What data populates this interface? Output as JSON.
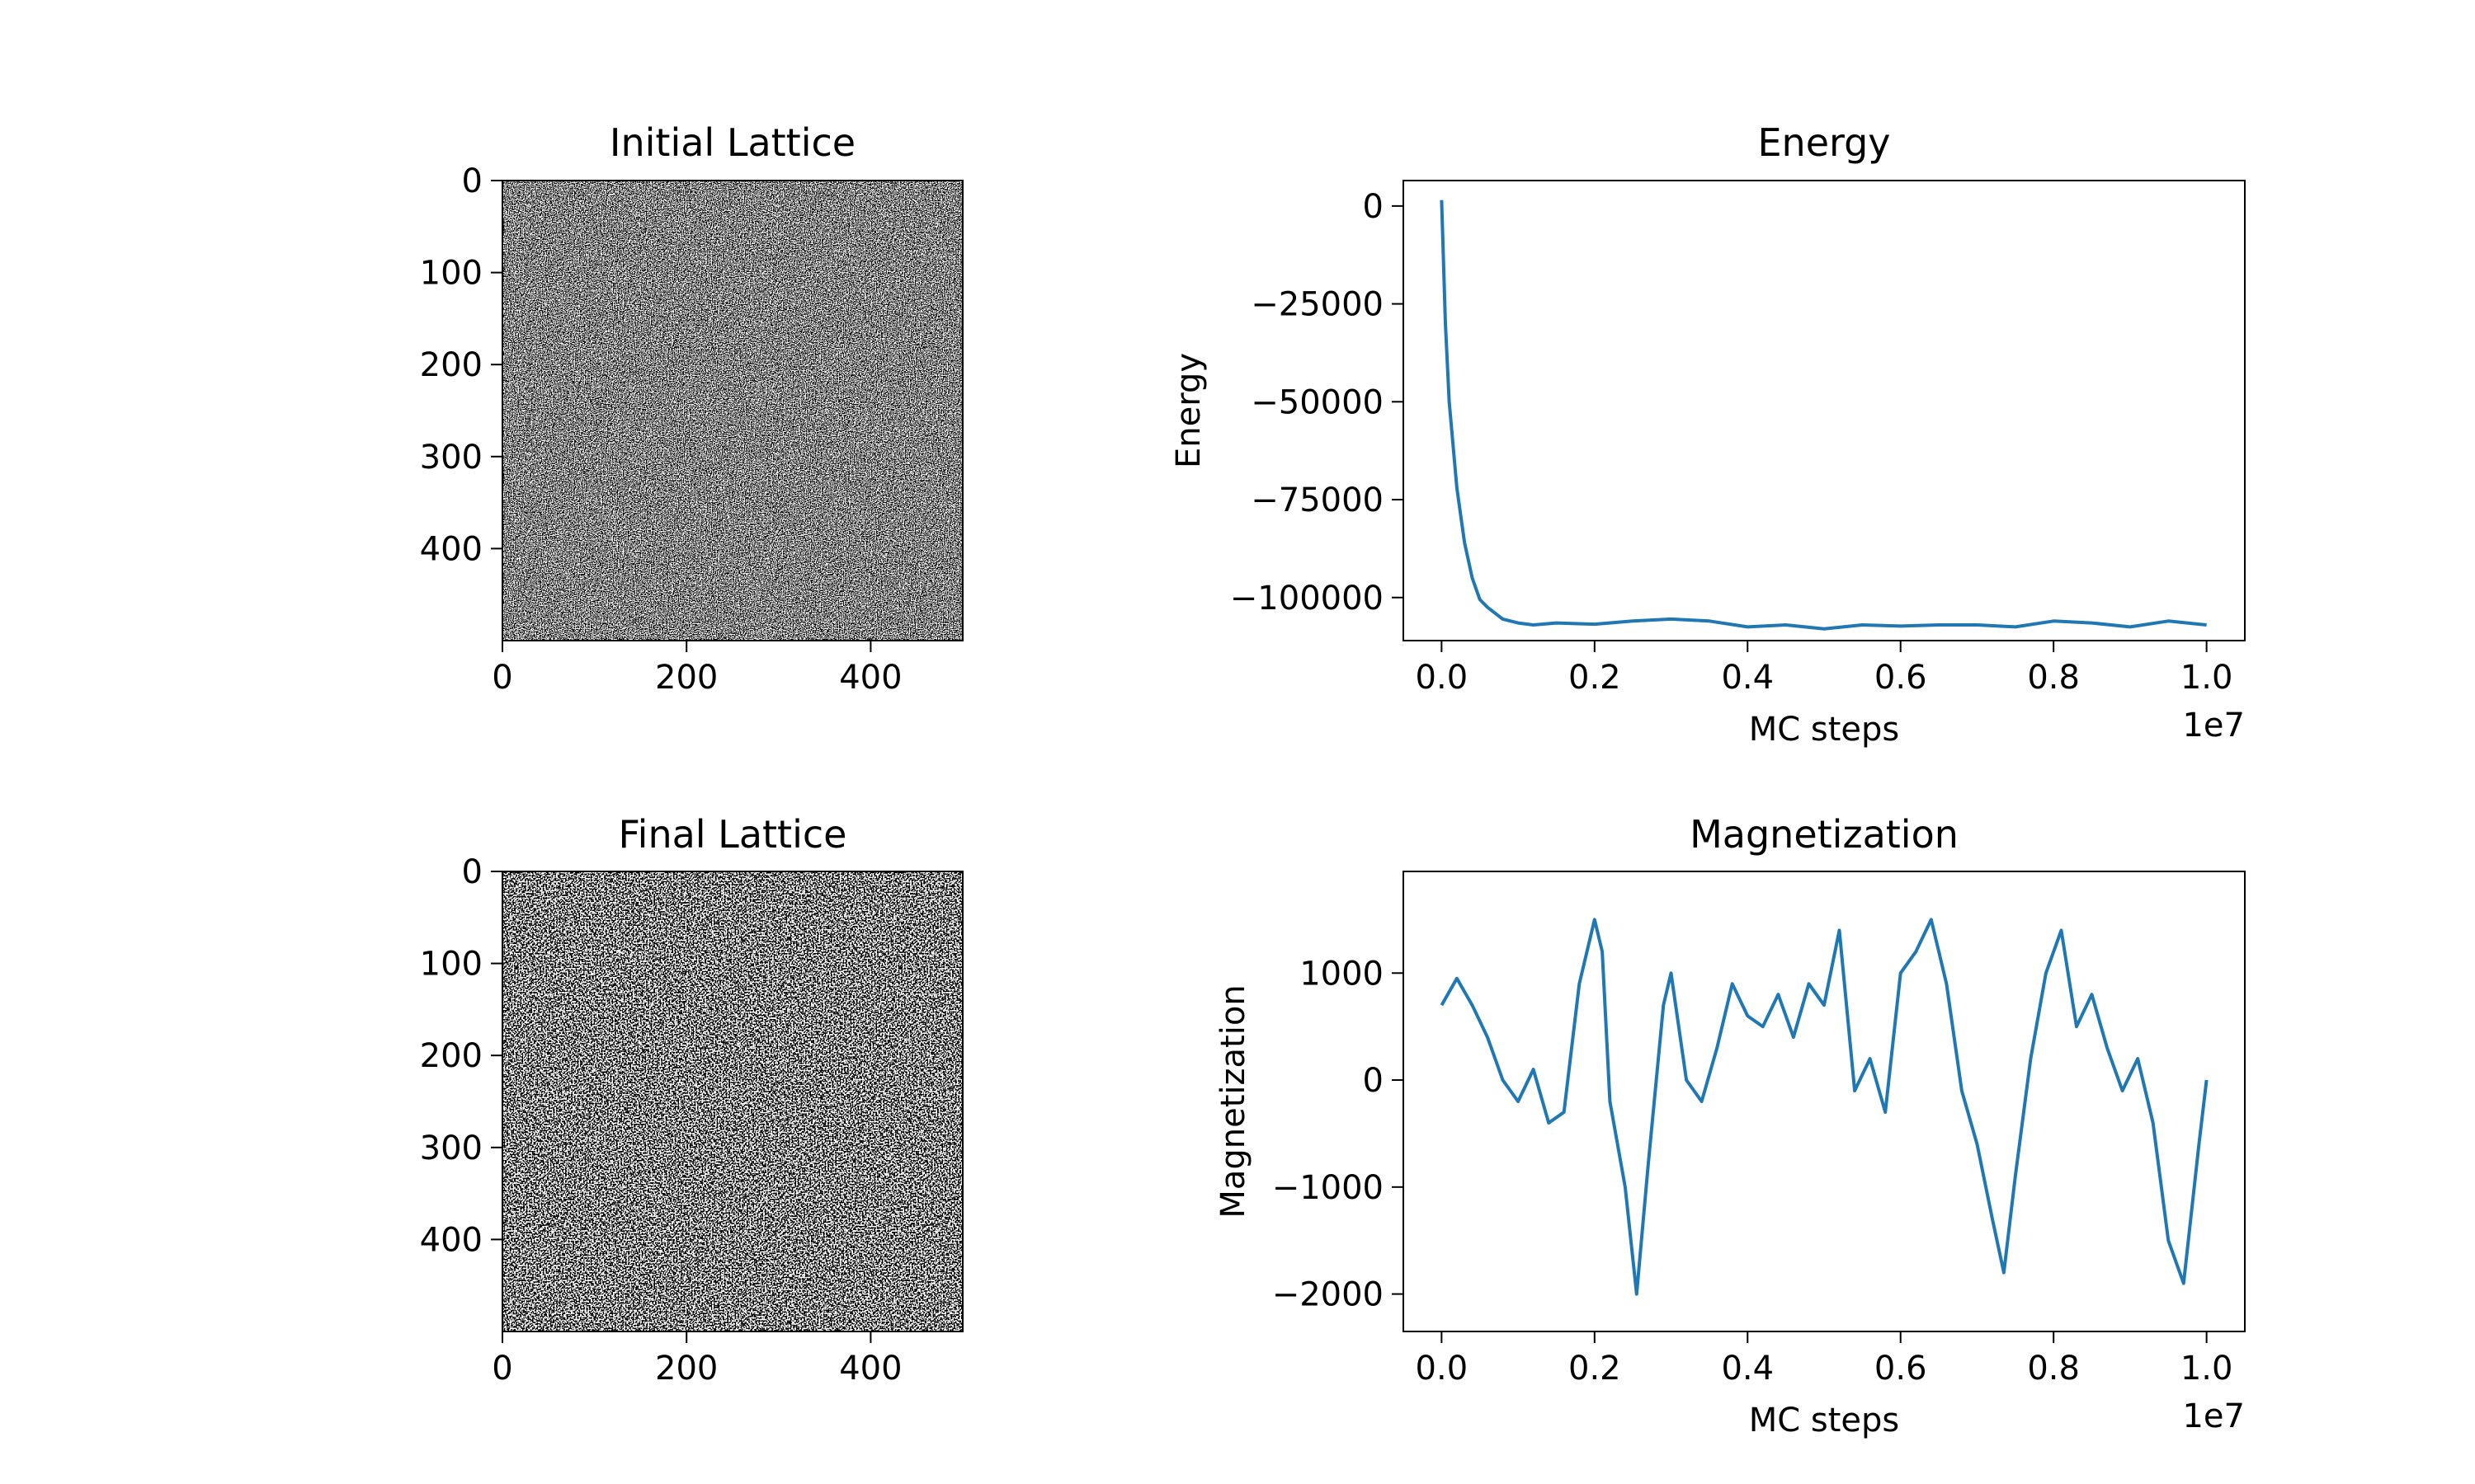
{
  "figure": {
    "background": "#ffffff"
  },
  "chart_data": [
    {
      "type": "heatmap",
      "title": "Initial Lattice",
      "grid_size": 500,
      "colormap": [
        "#000000",
        "#ffffff"
      ],
      "xlim": [
        0,
        500
      ],
      "ylim": [
        500,
        0
      ],
      "xticks": [
        0,
        200,
        400
      ],
      "yticks": [
        0,
        100,
        200,
        300,
        400
      ],
      "description": "Random +1/-1 spin configuration"
    },
    {
      "type": "line",
      "title": "Energy",
      "xlabel": "MC steps",
      "ylabel": "Energy",
      "x_offset_label": "1e7",
      "color": "#1f77b4",
      "xlim": [
        -0.05,
        1.05
      ],
      "ylim": [
        -111000,
        6500
      ],
      "xticks": [
        0.0,
        0.2,
        0.4,
        0.6,
        0.8,
        1.0
      ],
      "xtick_labels": [
        "0.0",
        "0.2",
        "0.4",
        "0.6",
        "0.8",
        "1.0"
      ],
      "yticks": [
        0,
        -25000,
        -50000,
        -75000,
        -100000
      ],
      "ytick_labels": [
        "0",
        "−25000",
        "−50000",
        "−75000",
        "−100000"
      ],
      "series": [
        {
          "x": [
            0.0,
            0.005,
            0.01,
            0.02,
            0.03,
            0.04,
            0.05,
            0.06,
            0.07,
            0.08,
            0.1,
            0.12,
            0.15,
            0.2,
            0.25,
            0.3,
            0.35,
            0.4,
            0.45,
            0.5,
            0.55,
            0.6,
            0.65,
            0.7,
            0.75,
            0.8,
            0.85,
            0.9,
            0.95,
            1.0
          ],
          "y": [
            1500,
            -30000,
            -50000,
            -72000,
            -86000,
            -95000,
            -100500,
            -102500,
            -104000,
            -105500,
            -106500,
            -107000,
            -106500,
            -106800,
            -106000,
            -105500,
            -106000,
            -107500,
            -107000,
            -108000,
            -107000,
            -107300,
            -107000,
            -107000,
            -107500,
            -106000,
            -106500,
            -107500,
            -106000,
            -107000
          ]
        }
      ]
    },
    {
      "type": "heatmap",
      "title": "Final Lattice",
      "grid_size": 500,
      "colormap": [
        "#000000",
        "#ffffff"
      ],
      "xlim": [
        0,
        500
      ],
      "ylim": [
        500,
        0
      ],
      "xticks": [
        0,
        200,
        400
      ],
      "yticks": [
        0,
        100,
        200,
        300,
        400
      ],
      "description": "Spin configuration after MC steps"
    },
    {
      "type": "line",
      "title": "Magnetization",
      "xlabel": "MC steps",
      "ylabel": "Magnetization",
      "x_offset_label": "1e7",
      "color": "#1f77b4",
      "xlim": [
        -0.05,
        1.05
      ],
      "ylim": [
        -2350,
        1950
      ],
      "xticks": [
        0.0,
        0.2,
        0.4,
        0.6,
        0.8,
        1.0
      ],
      "xtick_labels": [
        "0.0",
        "0.2",
        "0.4",
        "0.6",
        "0.8",
        "1.0"
      ],
      "yticks": [
        1000,
        0,
        -1000,
        -2000
      ],
      "ytick_labels": [
        "1000",
        "0",
        "−1000",
        "−2000"
      ],
      "series": [
        {
          "x": [
            0.0,
            0.02,
            0.04,
            0.06,
            0.08,
            0.1,
            0.12,
            0.14,
            0.16,
            0.18,
            0.2,
            0.21,
            0.22,
            0.24,
            0.255,
            0.27,
            0.29,
            0.3,
            0.32,
            0.34,
            0.36,
            0.38,
            0.4,
            0.42,
            0.44,
            0.46,
            0.48,
            0.5,
            0.52,
            0.54,
            0.56,
            0.58,
            0.6,
            0.62,
            0.64,
            0.66,
            0.68,
            0.7,
            0.72,
            0.735,
            0.75,
            0.77,
            0.79,
            0.81,
            0.83,
            0.85,
            0.87,
            0.89,
            0.91,
            0.93,
            0.95,
            0.97,
            0.99,
            1.0
          ],
          "y": [
            700,
            950,
            700,
            400,
            0,
            -200,
            100,
            -400,
            -300,
            900,
            1500,
            1200,
            -200,
            -1000,
            -2000,
            -800,
            700,
            1000,
            0,
            -200,
            300,
            900,
            600,
            500,
            800,
            400,
            900,
            700,
            1400,
            -100,
            200,
            -300,
            1000,
            1200,
            1500,
            900,
            -100,
            -600,
            -1300,
            -1800,
            -900,
            200,
            1000,
            1400,
            500,
            800,
            300,
            -100,
            200,
            -400,
            -1500,
            -1900,
            -600,
            0
          ]
        }
      ]
    }
  ]
}
